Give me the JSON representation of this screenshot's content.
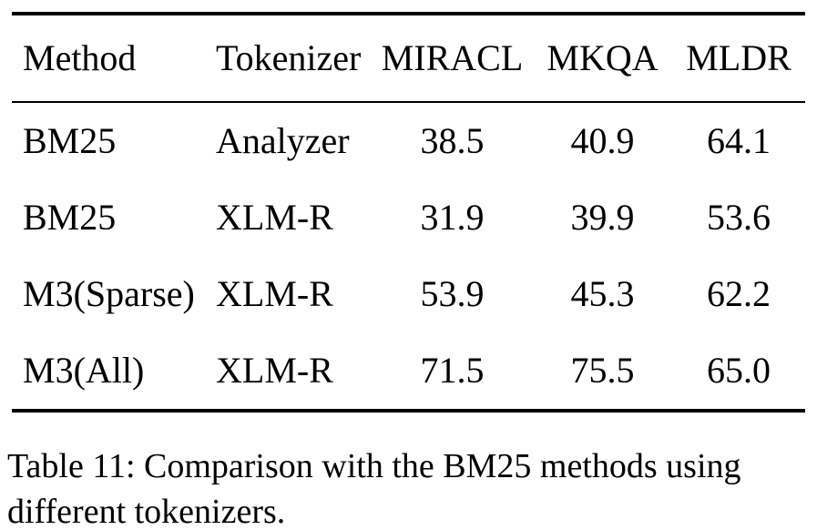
{
  "table": {
    "headers": [
      "Method",
      "Tokenizer",
      "MIRACL",
      "MKQA",
      "MLDR"
    ],
    "rows": [
      [
        "BM25",
        "Analyzer",
        "38.5",
        "40.9",
        "64.1"
      ],
      [
        "BM25",
        "XLM-R",
        "31.9",
        "39.9",
        "53.6"
      ],
      [
        "M3(Sparse)",
        "XLM-R",
        "53.9",
        "45.3",
        "62.2"
      ],
      [
        "M3(All)",
        "XLM-R",
        "71.5",
        "75.5",
        "65.0"
      ]
    ]
  },
  "caption": {
    "line1": "Table 11: Comparison with the BM25 methods using",
    "line2": "different tokenizers.",
    "full_text": "Table 11: Comparison with the BM25 methods using different tokenizers."
  },
  "colors": {
    "text": "#000000",
    "background": "#ffffff",
    "rule": "#000000"
  }
}
